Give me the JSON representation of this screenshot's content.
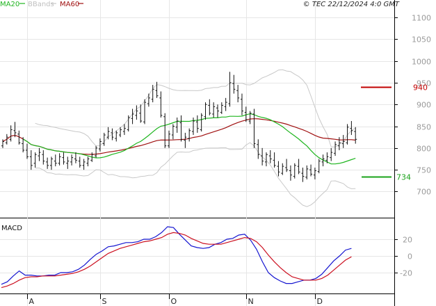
{
  "header": {
    "ma20_label": "MA20",
    "bbands_label": "BBands",
    "ma60_label": "MA60",
    "copyright": "© TEC 22/12/2024 4:0 GMT"
  },
  "colors": {
    "ma20": "#1fb51f",
    "bbands": "#c8c8c8",
    "ma60": "#a01010",
    "price": "#111111",
    "macd_line": "#1515d0",
    "macd_signal": "#cc1020",
    "grid": "#e6e6e6",
    "level_red": "#c00000",
    "level_green": "#1aa31a"
  },
  "chart_data": [
    {
      "type": "ohlc",
      "ylim": [
        640,
        1140
      ],
      "yticks": [
        700,
        750,
        800,
        850,
        900,
        950,
        1000,
        1050,
        1100
      ],
      "xtick_labels": [
        "A",
        "S",
        "O",
        "N",
        "D"
      ],
      "levels": [
        {
          "value": 940,
          "label": "940",
          "color": "red"
        },
        {
          "value": 734,
          "label": "734",
          "color": "green"
        }
      ],
      "ohlc": [
        [
          805,
          820,
          800,
          815
        ],
        [
          812,
          832,
          808,
          825
        ],
        [
          820,
          852,
          815,
          842
        ],
        [
          840,
          860,
          825,
          835
        ],
        [
          832,
          840,
          808,
          812
        ],
        [
          810,
          825,
          790,
          795
        ],
        [
          795,
          810,
          775,
          780
        ],
        [
          780,
          795,
          750,
          760
        ],
        [
          765,
          790,
          755,
          785
        ],
        [
          782,
          800,
          770,
          790
        ],
        [
          785,
          795,
          762,
          770
        ],
        [
          768,
          778,
          752,
          760
        ],
        [
          760,
          780,
          750,
          775
        ],
        [
          770,
          785,
          758,
          765
        ],
        [
          765,
          788,
          760,
          780
        ],
        [
          778,
          790,
          762,
          768
        ],
        [
          765,
          780,
          752,
          770
        ],
        [
          768,
          785,
          760,
          778
        ],
        [
          775,
          790,
          765,
          772
        ],
        [
          770,
          780,
          755,
          760
        ],
        [
          760,
          775,
          750,
          768
        ],
        [
          765,
          780,
          758,
          775
        ],
        [
          772,
          790,
          768,
          785
        ],
        [
          782,
          805,
          778,
          800
        ],
        [
          798,
          822,
          792,
          815
        ],
        [
          810,
          835,
          805,
          830
        ],
        [
          825,
          848,
          820,
          838
        ],
        [
          835,
          845,
          818,
          825
        ],
        [
          822,
          840,
          815,
          835
        ],
        [
          830,
          848,
          825,
          842
        ],
        [
          838,
          855,
          830,
          845
        ],
        [
          842,
          875,
          838,
          870
        ],
        [
          868,
          890,
          855,
          878
        ],
        [
          875,
          898,
          865,
          885
        ],
        [
          880,
          900,
          858,
          862
        ],
        [
          860,
          912,
          855,
          905
        ],
        [
          902,
          925,
          895,
          915
        ],
        [
          912,
          945,
          905,
          935
        ],
        [
          932,
          952,
          915,
          920
        ],
        [
          915,
          930,
          870,
          875
        ],
        [
          872,
          880,
          800,
          805
        ],
        [
          805,
          840,
          800,
          832
        ],
        [
          830,
          855,
          820,
          850
        ],
        [
          848,
          870,
          835,
          862
        ],
        [
          858,
          875,
          815,
          820
        ],
        [
          818,
          835,
          800,
          825
        ],
        [
          822,
          845,
          815,
          840
        ],
        [
          838,
          870,
          830,
          862
        ],
        [
          860,
          875,
          835,
          845
        ],
        [
          842,
          880,
          838,
          875
        ],
        [
          872,
          905,
          865,
          900
        ],
        [
          898,
          912,
          875,
          880
        ],
        [
          878,
          905,
          870,
          895
        ],
        [
          892,
          900,
          870,
          885
        ],
        [
          882,
          905,
          878,
          898
        ],
        [
          895,
          915,
          885,
          905
        ],
        [
          902,
          975,
          895,
          950
        ],
        [
          948,
          968,
          925,
          935
        ],
        [
          932,
          945,
          905,
          915
        ],
        [
          912,
          925,
          875,
          885
        ],
        [
          882,
          895,
          860,
          865
        ],
        [
          862,
          885,
          855,
          880
        ],
        [
          878,
          890,
          800,
          810
        ],
        [
          808,
          820,
          775,
          785
        ],
        [
          782,
          800,
          760,
          770
        ],
        [
          768,
          790,
          758,
          785
        ],
        [
          782,
          795,
          765,
          775
        ],
        [
          772,
          790,
          755,
          760
        ],
        [
          758,
          770,
          735,
          745
        ],
        [
          742,
          765,
          738,
          758
        ],
        [
          755,
          775,
          745,
          750
        ],
        [
          748,
          760,
          725,
          738
        ],
        [
          735,
          765,
          730,
          760
        ],
        [
          758,
          775,
          740,
          745
        ],
        [
          742,
          755,
          722,
          735
        ],
        [
          733,
          760,
          728,
          752
        ],
        [
          750,
          762,
          735,
          740
        ],
        [
          738,
          755,
          728,
          748
        ],
        [
          746,
          775,
          742,
          770
        ],
        [
          768,
          785,
          758,
          775
        ],
        [
          772,
          790,
          765,
          780
        ],
        [
          778,
          800,
          770,
          790
        ],
        [
          788,
          815,
          782,
          808
        ],
        [
          805,
          825,
          795,
          812
        ],
        [
          810,
          830,
          800,
          815
        ],
        [
          812,
          855,
          808,
          848
        ],
        [
          845,
          862,
          830,
          840
        ],
        [
          838,
          848,
          810,
          820
        ]
      ]
    },
    {
      "type": "line",
      "title": "MACD",
      "ylim": [
        -45,
        45
      ],
      "yticks": [
        20,
        0,
        -20
      ],
      "series": [
        {
          "role": "macd",
          "values": [
            -34,
            -31,
            -24,
            -18,
            -23,
            -23,
            -24,
            -24,
            -23,
            -23,
            -20,
            -20,
            -19,
            -16,
            -11,
            -4,
            2,
            6,
            11,
            12,
            14,
            16,
            16,
            17,
            20,
            20,
            23,
            28,
            35,
            34,
            26,
            19,
            12,
            10,
            9,
            10,
            14,
            16,
            20,
            21,
            25,
            26,
            19,
            8,
            -7,
            -20,
            -26,
            -30,
            -33,
            -33,
            -31,
            -29,
            -29,
            -27,
            -22,
            -14,
            -6,
            0,
            7,
            9
          ]
        },
        {
          "role": "signal",
          "values": [
            -38,
            -36,
            -33,
            -29,
            -26,
            -25,
            -25,
            -24,
            -24,
            -24,
            -23,
            -22,
            -21,
            -19,
            -16,
            -12,
            -7,
            -2,
            3,
            6,
            9,
            11,
            13,
            15,
            17,
            18,
            20,
            22,
            26,
            28,
            27,
            25,
            21,
            18,
            15,
            14,
            14,
            14,
            16,
            18,
            20,
            22,
            21,
            17,
            10,
            1,
            -7,
            -14,
            -20,
            -25,
            -27,
            -29,
            -29,
            -29,
            -27,
            -23,
            -17,
            -11,
            -5,
            -1
          ]
        }
      ]
    }
  ]
}
